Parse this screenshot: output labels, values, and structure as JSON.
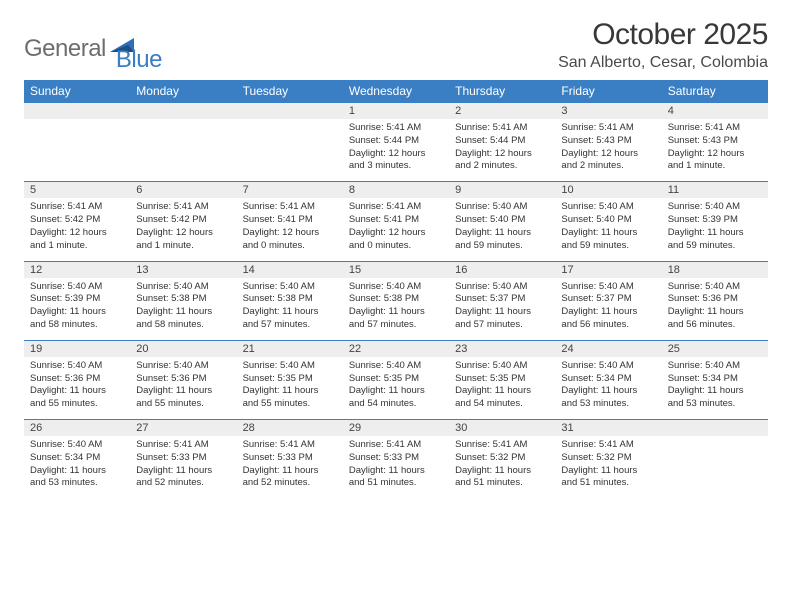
{
  "brand": {
    "part1": "General",
    "part2": "Blue"
  },
  "title": "October 2025",
  "location": "San Alberto, Cesar, Colombia",
  "colors": {
    "header_bg": "#3a7fc4",
    "header_text": "#ffffff",
    "daynum_bg": "#eeeeee",
    "row_border": "#3a7fc4",
    "logo_gray": "#6e6e6e",
    "logo_blue": "#3a7fc4"
  },
  "days_of_week": [
    "Sunday",
    "Monday",
    "Tuesday",
    "Wednesday",
    "Thursday",
    "Friday",
    "Saturday"
  ],
  "weeks": [
    [
      null,
      null,
      null,
      {
        "n": "1",
        "sr": "Sunrise: 5:41 AM",
        "ss": "Sunset: 5:44 PM",
        "d1": "Daylight: 12 hours",
        "d2": "and 3 minutes."
      },
      {
        "n": "2",
        "sr": "Sunrise: 5:41 AM",
        "ss": "Sunset: 5:44 PM",
        "d1": "Daylight: 12 hours",
        "d2": "and 2 minutes."
      },
      {
        "n": "3",
        "sr": "Sunrise: 5:41 AM",
        "ss": "Sunset: 5:43 PM",
        "d1": "Daylight: 12 hours",
        "d2": "and 2 minutes."
      },
      {
        "n": "4",
        "sr": "Sunrise: 5:41 AM",
        "ss": "Sunset: 5:43 PM",
        "d1": "Daylight: 12 hours",
        "d2": "and 1 minute."
      }
    ],
    [
      {
        "n": "5",
        "sr": "Sunrise: 5:41 AM",
        "ss": "Sunset: 5:42 PM",
        "d1": "Daylight: 12 hours",
        "d2": "and 1 minute."
      },
      {
        "n": "6",
        "sr": "Sunrise: 5:41 AM",
        "ss": "Sunset: 5:42 PM",
        "d1": "Daylight: 12 hours",
        "d2": "and 1 minute."
      },
      {
        "n": "7",
        "sr": "Sunrise: 5:41 AM",
        "ss": "Sunset: 5:41 PM",
        "d1": "Daylight: 12 hours",
        "d2": "and 0 minutes."
      },
      {
        "n": "8",
        "sr": "Sunrise: 5:41 AM",
        "ss": "Sunset: 5:41 PM",
        "d1": "Daylight: 12 hours",
        "d2": "and 0 minutes."
      },
      {
        "n": "9",
        "sr": "Sunrise: 5:40 AM",
        "ss": "Sunset: 5:40 PM",
        "d1": "Daylight: 11 hours",
        "d2": "and 59 minutes."
      },
      {
        "n": "10",
        "sr": "Sunrise: 5:40 AM",
        "ss": "Sunset: 5:40 PM",
        "d1": "Daylight: 11 hours",
        "d2": "and 59 minutes."
      },
      {
        "n": "11",
        "sr": "Sunrise: 5:40 AM",
        "ss": "Sunset: 5:39 PM",
        "d1": "Daylight: 11 hours",
        "d2": "and 59 minutes."
      }
    ],
    [
      {
        "n": "12",
        "sr": "Sunrise: 5:40 AM",
        "ss": "Sunset: 5:39 PM",
        "d1": "Daylight: 11 hours",
        "d2": "and 58 minutes."
      },
      {
        "n": "13",
        "sr": "Sunrise: 5:40 AM",
        "ss": "Sunset: 5:38 PM",
        "d1": "Daylight: 11 hours",
        "d2": "and 58 minutes."
      },
      {
        "n": "14",
        "sr": "Sunrise: 5:40 AM",
        "ss": "Sunset: 5:38 PM",
        "d1": "Daylight: 11 hours",
        "d2": "and 57 minutes."
      },
      {
        "n": "15",
        "sr": "Sunrise: 5:40 AM",
        "ss": "Sunset: 5:38 PM",
        "d1": "Daylight: 11 hours",
        "d2": "and 57 minutes."
      },
      {
        "n": "16",
        "sr": "Sunrise: 5:40 AM",
        "ss": "Sunset: 5:37 PM",
        "d1": "Daylight: 11 hours",
        "d2": "and 57 minutes."
      },
      {
        "n": "17",
        "sr": "Sunrise: 5:40 AM",
        "ss": "Sunset: 5:37 PM",
        "d1": "Daylight: 11 hours",
        "d2": "and 56 minutes."
      },
      {
        "n": "18",
        "sr": "Sunrise: 5:40 AM",
        "ss": "Sunset: 5:36 PM",
        "d1": "Daylight: 11 hours",
        "d2": "and 56 minutes."
      }
    ],
    [
      {
        "n": "19",
        "sr": "Sunrise: 5:40 AM",
        "ss": "Sunset: 5:36 PM",
        "d1": "Daylight: 11 hours",
        "d2": "and 55 minutes."
      },
      {
        "n": "20",
        "sr": "Sunrise: 5:40 AM",
        "ss": "Sunset: 5:36 PM",
        "d1": "Daylight: 11 hours",
        "d2": "and 55 minutes."
      },
      {
        "n": "21",
        "sr": "Sunrise: 5:40 AM",
        "ss": "Sunset: 5:35 PM",
        "d1": "Daylight: 11 hours",
        "d2": "and 55 minutes."
      },
      {
        "n": "22",
        "sr": "Sunrise: 5:40 AM",
        "ss": "Sunset: 5:35 PM",
        "d1": "Daylight: 11 hours",
        "d2": "and 54 minutes."
      },
      {
        "n": "23",
        "sr": "Sunrise: 5:40 AM",
        "ss": "Sunset: 5:35 PM",
        "d1": "Daylight: 11 hours",
        "d2": "and 54 minutes."
      },
      {
        "n": "24",
        "sr": "Sunrise: 5:40 AM",
        "ss": "Sunset: 5:34 PM",
        "d1": "Daylight: 11 hours",
        "d2": "and 53 minutes."
      },
      {
        "n": "25",
        "sr": "Sunrise: 5:40 AM",
        "ss": "Sunset: 5:34 PM",
        "d1": "Daylight: 11 hours",
        "d2": "and 53 minutes."
      }
    ],
    [
      {
        "n": "26",
        "sr": "Sunrise: 5:40 AM",
        "ss": "Sunset: 5:34 PM",
        "d1": "Daylight: 11 hours",
        "d2": "and 53 minutes."
      },
      {
        "n": "27",
        "sr": "Sunrise: 5:41 AM",
        "ss": "Sunset: 5:33 PM",
        "d1": "Daylight: 11 hours",
        "d2": "and 52 minutes."
      },
      {
        "n": "28",
        "sr": "Sunrise: 5:41 AM",
        "ss": "Sunset: 5:33 PM",
        "d1": "Daylight: 11 hours",
        "d2": "and 52 minutes."
      },
      {
        "n": "29",
        "sr": "Sunrise: 5:41 AM",
        "ss": "Sunset: 5:33 PM",
        "d1": "Daylight: 11 hours",
        "d2": "and 51 minutes."
      },
      {
        "n": "30",
        "sr": "Sunrise: 5:41 AM",
        "ss": "Sunset: 5:32 PM",
        "d1": "Daylight: 11 hours",
        "d2": "and 51 minutes."
      },
      {
        "n": "31",
        "sr": "Sunrise: 5:41 AM",
        "ss": "Sunset: 5:32 PM",
        "d1": "Daylight: 11 hours",
        "d2": "and 51 minutes."
      },
      null
    ]
  ]
}
